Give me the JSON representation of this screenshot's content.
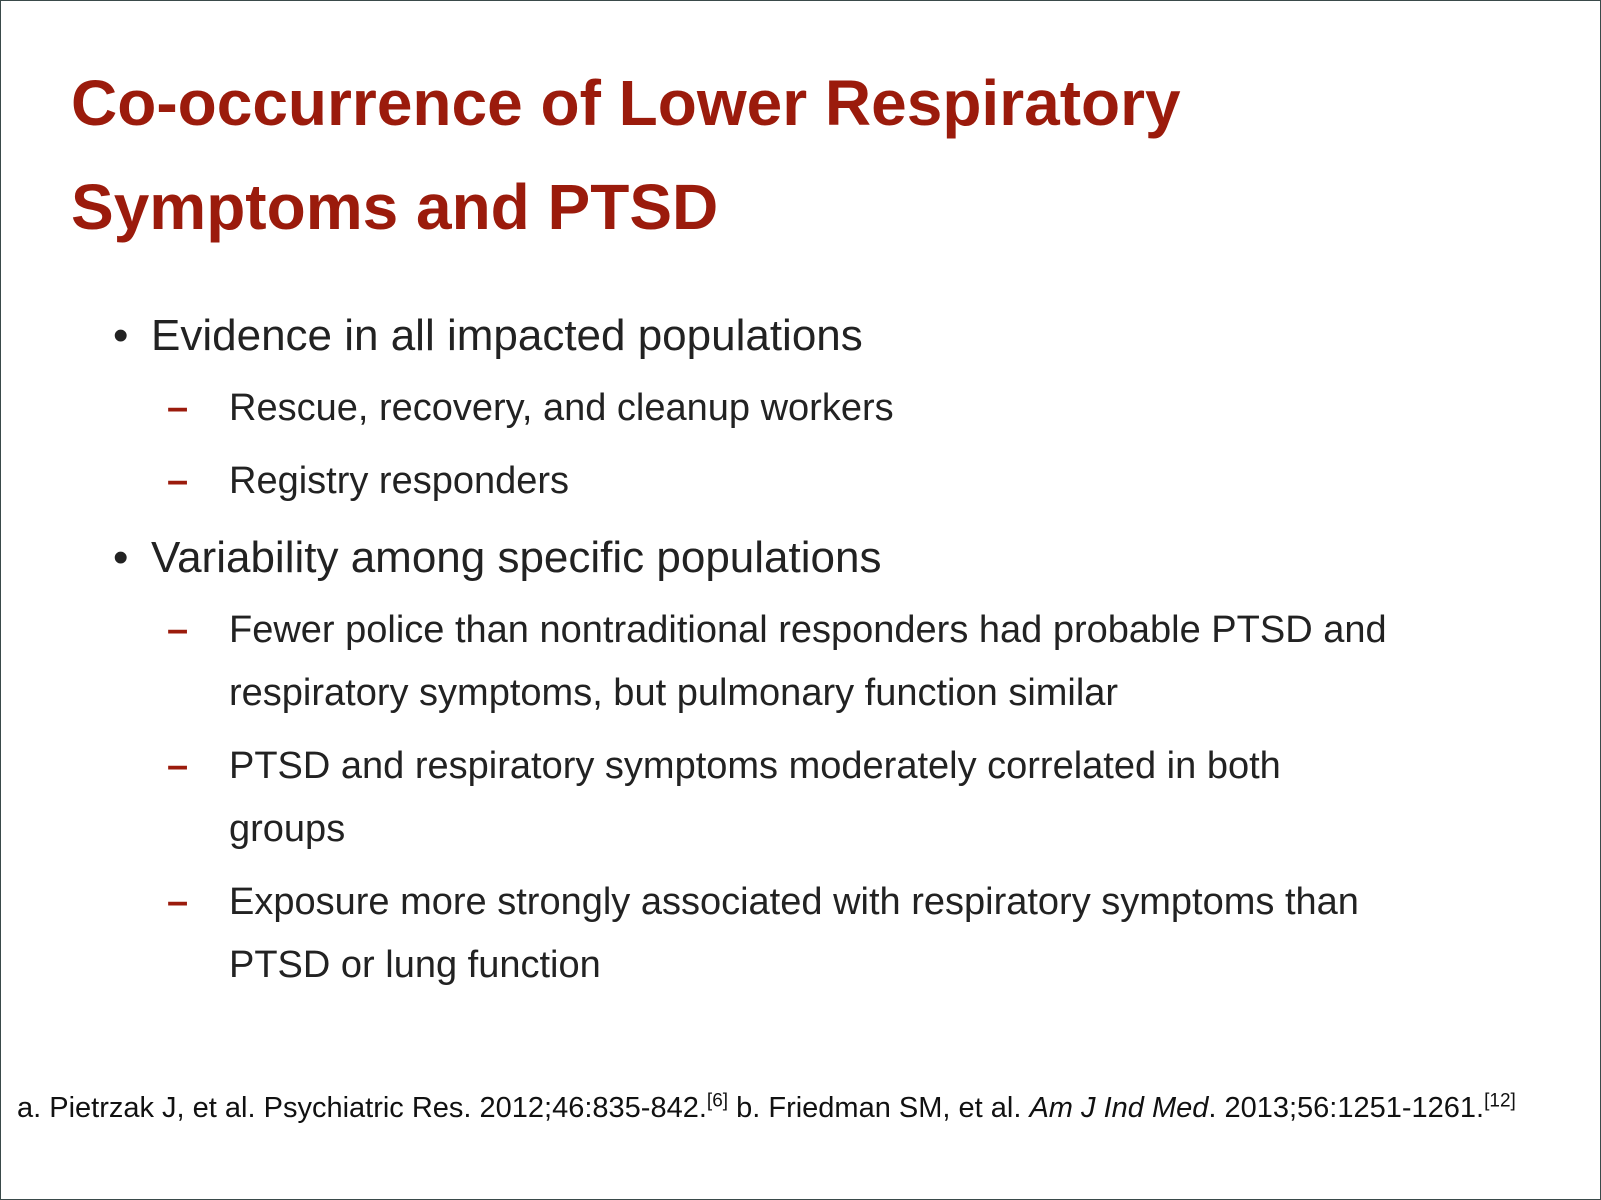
{
  "title": "Co-occurrence of Lower Respiratory Symptoms and PTSD",
  "bullets": [
    {
      "text": "Evidence in all impacted populations",
      "subitems": [
        "Rescue, recovery, and cleanup workers",
        "Registry responders"
      ]
    },
    {
      "text": "Variability among specific populations",
      "subitems": [
        "Fewer police than nontraditional responders had probable PTSD and respiratory symptoms, but pulmonary function similar",
        "PTSD and respiratory symptoms moderately correlated in both groups",
        "Exposure more strongly associated with respiratory symptoms than PTSD or lung function"
      ]
    }
  ],
  "footnote": {
    "ref_a": "a. Pietrzak J, et al. Psychiatric Res. 2012;46:835-842.",
    "ref_a_cite": "[6]",
    "ref_b_authors": "b. Friedman SM, et al.",
    "ref_b_journal": "Am J Ind Med",
    "ref_b_rest": ". 2013;56:1251-1261.",
    "ref_b_cite": "[12]"
  }
}
